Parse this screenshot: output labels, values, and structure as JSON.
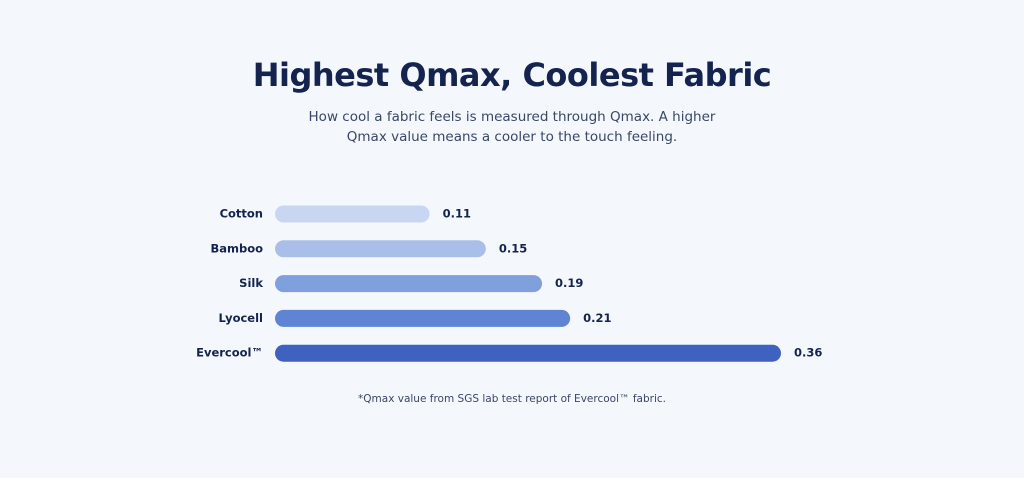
{
  "chart_data": {
    "type": "bar",
    "orientation": "horizontal",
    "title": "Highest Qmax, Coolest Fabric",
    "subtitle": "How cool a fabric feels is measured through Qmax. A higher Qmax value means a cooler to the touch feeling.",
    "categories": [
      "Cotton",
      "Bamboo",
      "Silk",
      "Lyocell",
      "Evercool™"
    ],
    "values": [
      0.11,
      0.15,
      0.19,
      0.21,
      0.36
    ],
    "colors": [
      "#c9d6f2",
      "#a9bfea",
      "#809fdd",
      "#5f84d3",
      "#3f61bf"
    ],
    "footnote": "*Qmax value from SGS lab test report of Evercool™ fabric."
  }
}
